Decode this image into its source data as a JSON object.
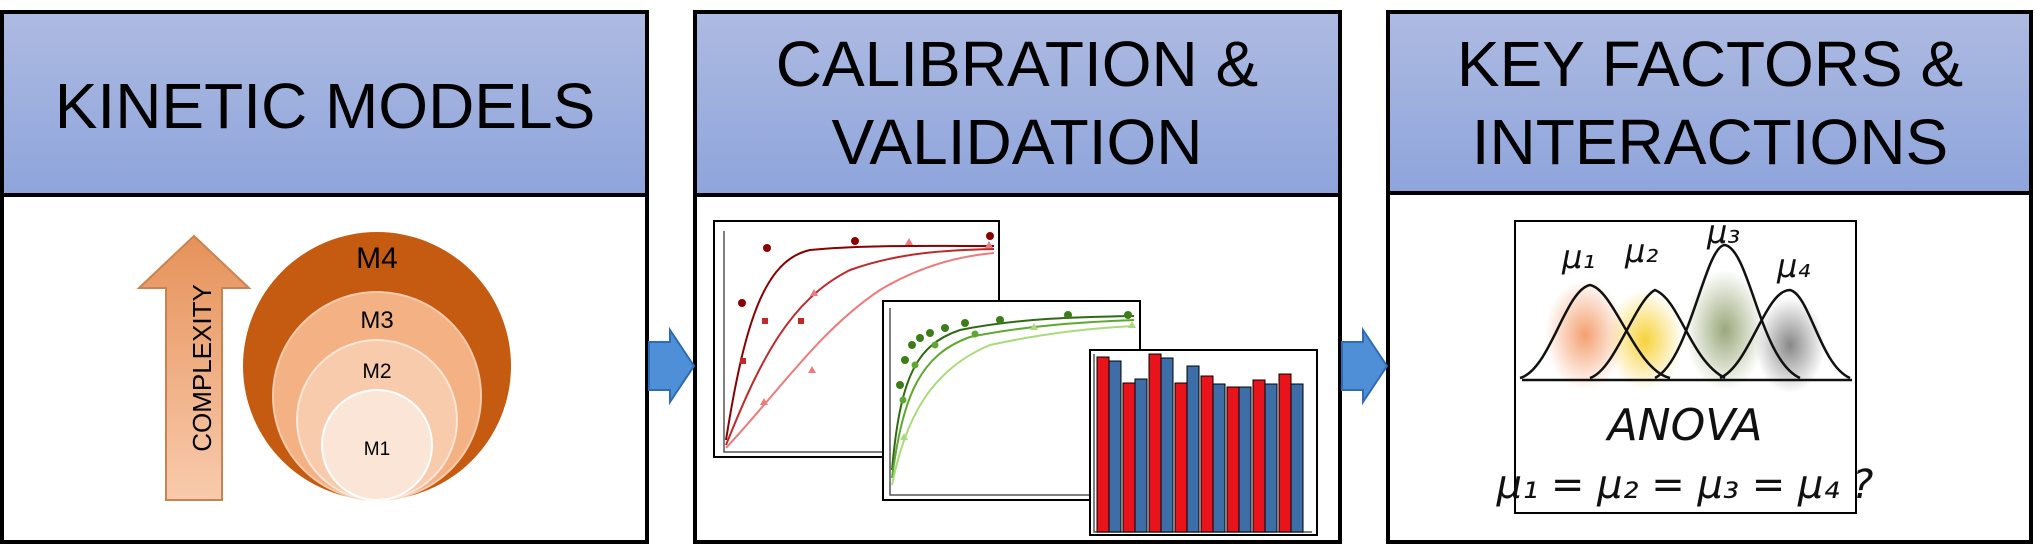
{
  "panels": [
    {
      "title_lines": [
        "KINETIC MODELS"
      ]
    },
    {
      "title_lines": [
        "CALIBRATION &",
        "VALIDATION"
      ]
    },
    {
      "title_lines": [
        "KEY FACTORS &",
        "INTERACTIONS"
      ]
    }
  ],
  "models": {
    "arrow_label": "COMPLEXITY",
    "levels": [
      "M4",
      "M3",
      "M2",
      "M1"
    ]
  },
  "anova": {
    "means": [
      "μ₁",
      "μ₂",
      "μ₃",
      "μ₄"
    ],
    "label": "ANOVA",
    "hypothesis": "μ₁ = μ₂ = μ₃ = μ₄ ?"
  }
}
